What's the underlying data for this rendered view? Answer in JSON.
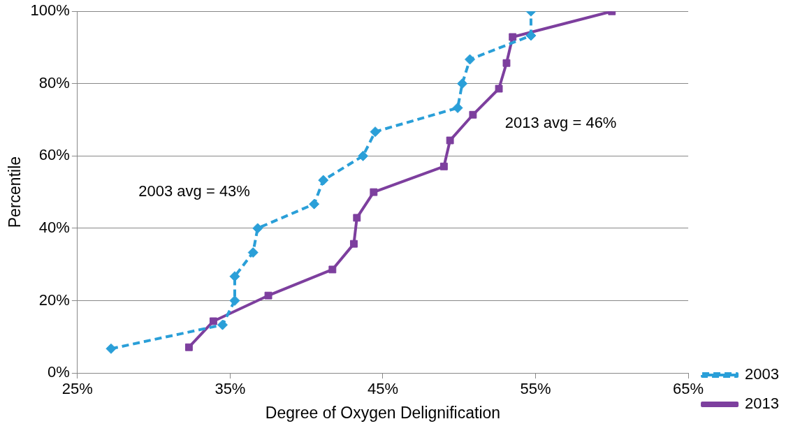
{
  "chart_data": {
    "type": "line",
    "xlabel": "Degree of Oxygen Delignification",
    "ylabel": "Percentile",
    "xlim": [
      25,
      65
    ],
    "xticks": [
      {
        "value": 25,
        "label": "25%"
      },
      {
        "value": 35,
        "label": "35%"
      },
      {
        "value": 45,
        "label": "45%"
      },
      {
        "value": 55,
        "label": "55%"
      },
      {
        "value": 65,
        "label": "65%"
      }
    ],
    "ylim": [
      0,
      100
    ],
    "yticks": [
      {
        "value": 0,
        "label": "0%"
      },
      {
        "value": 20,
        "label": "20%"
      },
      {
        "value": 40,
        "label": "40%"
      },
      {
        "value": 60,
        "label": "60%"
      },
      {
        "value": 80,
        "label": "80%"
      },
      {
        "value": 100,
        "label": "100%"
      }
    ],
    "grid": "y",
    "legend": "right",
    "annotations": [
      "2003 avg = 43%",
      "2013 avg = 46%"
    ],
    "series": [
      {
        "name": "2003",
        "color": "#2a9fd8",
        "marker": "diamond",
        "line_style": "dashed",
        "x": [
          27.2,
          34.5,
          35.3,
          35.3,
          36.5,
          36.8,
          40.5,
          41.1,
          43.7,
          44.5,
          49.9,
          50.2,
          50.7,
          54.7,
          54.7
        ],
        "values": [
          6.7,
          13.3,
          20,
          26.7,
          33.3,
          40,
          46.7,
          53.3,
          60,
          66.7,
          73.3,
          80,
          86.7,
          93.3,
          100
        ]
      },
      {
        "name": "2013",
        "color": "#7d3f9e",
        "marker": "square",
        "line_style": "solid",
        "x": [
          32.3,
          33.9,
          37.5,
          41.7,
          43.1,
          43.3,
          44.4,
          49.0,
          49.4,
          50.9,
          52.6,
          53.1,
          53.5,
          60.0
        ],
        "values": [
          7.1,
          14.3,
          21.4,
          28.6,
          35.7,
          42.9,
          50,
          57.1,
          64.3,
          71.4,
          78.6,
          85.7,
          92.9,
          100
        ]
      }
    ]
  }
}
